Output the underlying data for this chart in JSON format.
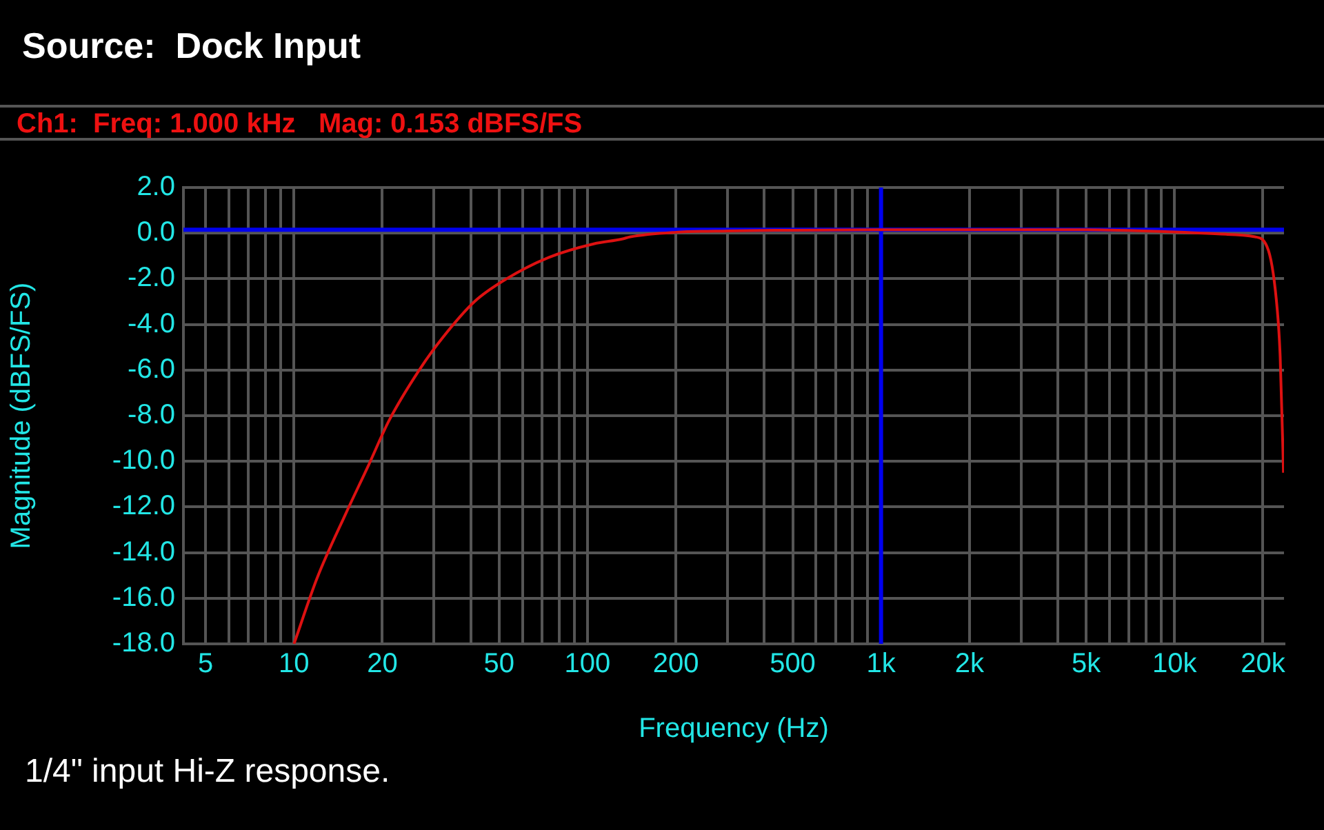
{
  "chart_data": {
    "type": "line",
    "title": "Source:  Dock Input",
    "subtitle": "Ch1:  Freq: 1.000 kHz   Mag: 0.153 dBFS/FS",
    "xlabel": "Frequency (Hz)",
    "ylabel": "Magnitude (dBFS/FS)",
    "annotations": [
      "1/4\" input Hi-Z response."
    ],
    "x": [
      10,
      12,
      15,
      17.9,
      21.1,
      26.7,
      32,
      41.2,
      53,
      73.6,
      105,
      131,
      140,
      200,
      300,
      500,
      1000,
      2000,
      5000,
      10000,
      15000,
      18800,
      20900,
      22400,
      22900,
      23400,
      23500
    ],
    "series": [
      {
        "color": "#dd1111",
        "values": [
          -18,
          -15.1,
          -12.3,
          -10.2,
          -8.2,
          -6.0,
          -4.6,
          -3.0,
          -2.0,
          -1.07,
          -0.47,
          -0.26,
          -0.16,
          0.04,
          0.1,
          0.13,
          0.15,
          0.15,
          0.15,
          0.05,
          -0.05,
          -0.16,
          -0.77,
          -3.4,
          -5.4,
          -9.5,
          -10.5
        ]
      }
    ],
    "log": "x",
    "xlim": [
      4.2,
      23600
    ],
    "ylim": [
      -18,
      2
    ],
    "xticks": [
      {
        "value": 5,
        "label": "5"
      },
      {
        "value": 6,
        "label": null
      },
      {
        "value": 7,
        "label": null
      },
      {
        "value": 8,
        "label": null
      },
      {
        "value": 9,
        "label": null
      },
      {
        "value": 10,
        "label": "10"
      },
      {
        "value": 20,
        "label": "20"
      },
      {
        "value": 30,
        "label": null
      },
      {
        "value": 40,
        "label": null
      },
      {
        "value": 50,
        "label": "50"
      },
      {
        "value": 60,
        "label": null
      },
      {
        "value": 70,
        "label": null
      },
      {
        "value": 80,
        "label": null
      },
      {
        "value": 90,
        "label": null
      },
      {
        "value": 100,
        "label": "100"
      },
      {
        "value": 200,
        "label": "200"
      },
      {
        "value": 300,
        "label": null
      },
      {
        "value": 400,
        "label": null
      },
      {
        "value": 500,
        "label": "500"
      },
      {
        "value": 600,
        "label": null
      },
      {
        "value": 700,
        "label": null
      },
      {
        "value": 800,
        "label": null
      },
      {
        "value": 900,
        "label": null
      },
      {
        "value": 1000,
        "label": "1k"
      },
      {
        "value": 2000,
        "label": "2k"
      },
      {
        "value": 3000,
        "label": null
      },
      {
        "value": 4000,
        "label": null
      },
      {
        "value": 5000,
        "label": "5k"
      },
      {
        "value": 6000,
        "label": null
      },
      {
        "value": 7000,
        "label": null
      },
      {
        "value": 8000,
        "label": null
      },
      {
        "value": 9000,
        "label": null
      },
      {
        "value": 10000,
        "label": "10k"
      },
      {
        "value": 20000,
        "label": "20k"
      }
    ],
    "yticks": [
      {
        "value": 2,
        "label": "2.0"
      },
      {
        "value": 0,
        "label": "0.0"
      },
      {
        "value": -2,
        "label": "-2.0"
      },
      {
        "value": -4,
        "label": "-4.0"
      },
      {
        "value": -6,
        "label": "-6.0"
      },
      {
        "value": -8,
        "label": "-8.0"
      },
      {
        "value": -10,
        "label": "-10.0"
      },
      {
        "value": -12,
        "label": "-12.0"
      },
      {
        "value": -14,
        "label": "-14.0"
      },
      {
        "value": -16,
        "label": "-16.0"
      },
      {
        "value": -18,
        "label": "-18.0"
      }
    ],
    "ref_lines": [
      {
        "axis": "y",
        "value": 0.153,
        "color": "#0000ee"
      },
      {
        "axis": "x",
        "value": 1000,
        "color": "#0000ee"
      }
    ],
    "grid": true,
    "legend": false,
    "marker": "none",
    "line_style": "solid"
  }
}
